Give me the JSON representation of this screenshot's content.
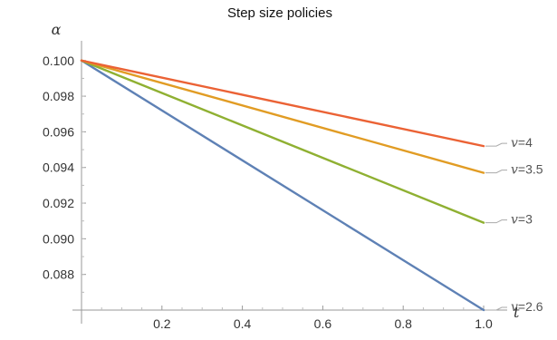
{
  "chart_data": {
    "type": "line",
    "title": "Step size policies",
    "xlabel": "t",
    "ylabel": "α",
    "xlim": [
      0,
      1.0
    ],
    "ylim": [
      0.086,
      0.1007
    ],
    "x_ticks": [
      0.2,
      0.4,
      0.6,
      0.8,
      1.0
    ],
    "y_ticks": [
      0.088,
      0.09,
      0.092,
      0.094,
      0.096,
      0.098,
      0.1
    ],
    "x_tick_labels": [
      "0.2",
      "0.4",
      "0.6",
      "0.8",
      "1.0"
    ],
    "y_tick_labels": [
      "0.088",
      "0.090",
      "0.092",
      "0.094",
      "0.096",
      "0.098",
      "0.100"
    ],
    "grid": false,
    "legend": "inline labels at right end of each line",
    "series": [
      {
        "name": "v=2.6",
        "var": "v",
        "eq": "=2.6",
        "color": "#5e81b5",
        "x": [
          0,
          1.0
        ],
        "y": [
          0.1,
          0.086
        ]
      },
      {
        "name": "v=3",
        "var": "v",
        "eq": "=3",
        "color": "#8fb032",
        "x": [
          0,
          1.0
        ],
        "y": [
          0.1,
          0.0909
        ]
      },
      {
        "name": "v=3.5",
        "var": "v",
        "eq": "=3.5",
        "color": "#e19c24",
        "x": [
          0,
          1.0
        ],
        "y": [
          0.1,
          0.0937
        ]
      },
      {
        "name": "v=4",
        "var": "v",
        "eq": "=4",
        "color": "#eb6235",
        "x": [
          0,
          1.0
        ],
        "y": [
          0.1,
          0.0952
        ]
      }
    ]
  }
}
